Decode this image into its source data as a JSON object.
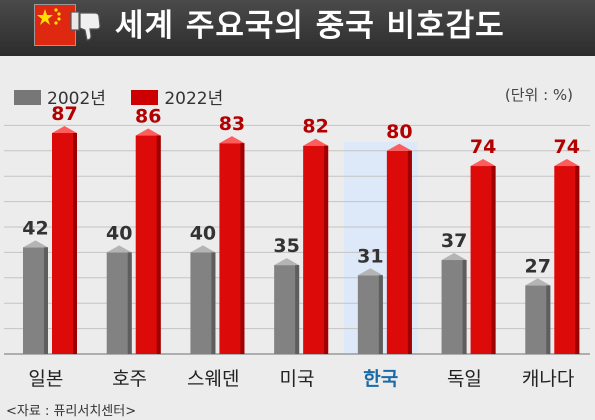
{
  "header": {
    "title": "세계 주요국의 중국 비호감도"
  },
  "unit": "(단위 : %)",
  "source": "<자료 : 퓨리서치센터>",
  "colors": {
    "series_2002": "#777777",
    "series_2022": "#cc0000",
    "highlight_bg": "#dde8f8",
    "highlight_label": "#1a6aa8"
  },
  "chart_data": {
    "type": "bar",
    "title": "세계 주요국의 중국 비호감도",
    "categories": [
      "일본",
      "호주",
      "스웨덴",
      "미국",
      "한국",
      "독일",
      "캐나다"
    ],
    "highlight_category": "한국",
    "ylabel": "",
    "xlabel": "",
    "ylim": [
      0,
      100
    ],
    "unit": "%",
    "legend": "top-left",
    "series": [
      {
        "name": "2002년",
        "values": [
          42,
          40,
          40,
          35,
          31,
          37,
          27
        ]
      },
      {
        "name": "2022년",
        "values": [
          87,
          86,
          83,
          82,
          80,
          74,
          74
        ]
      }
    ]
  }
}
